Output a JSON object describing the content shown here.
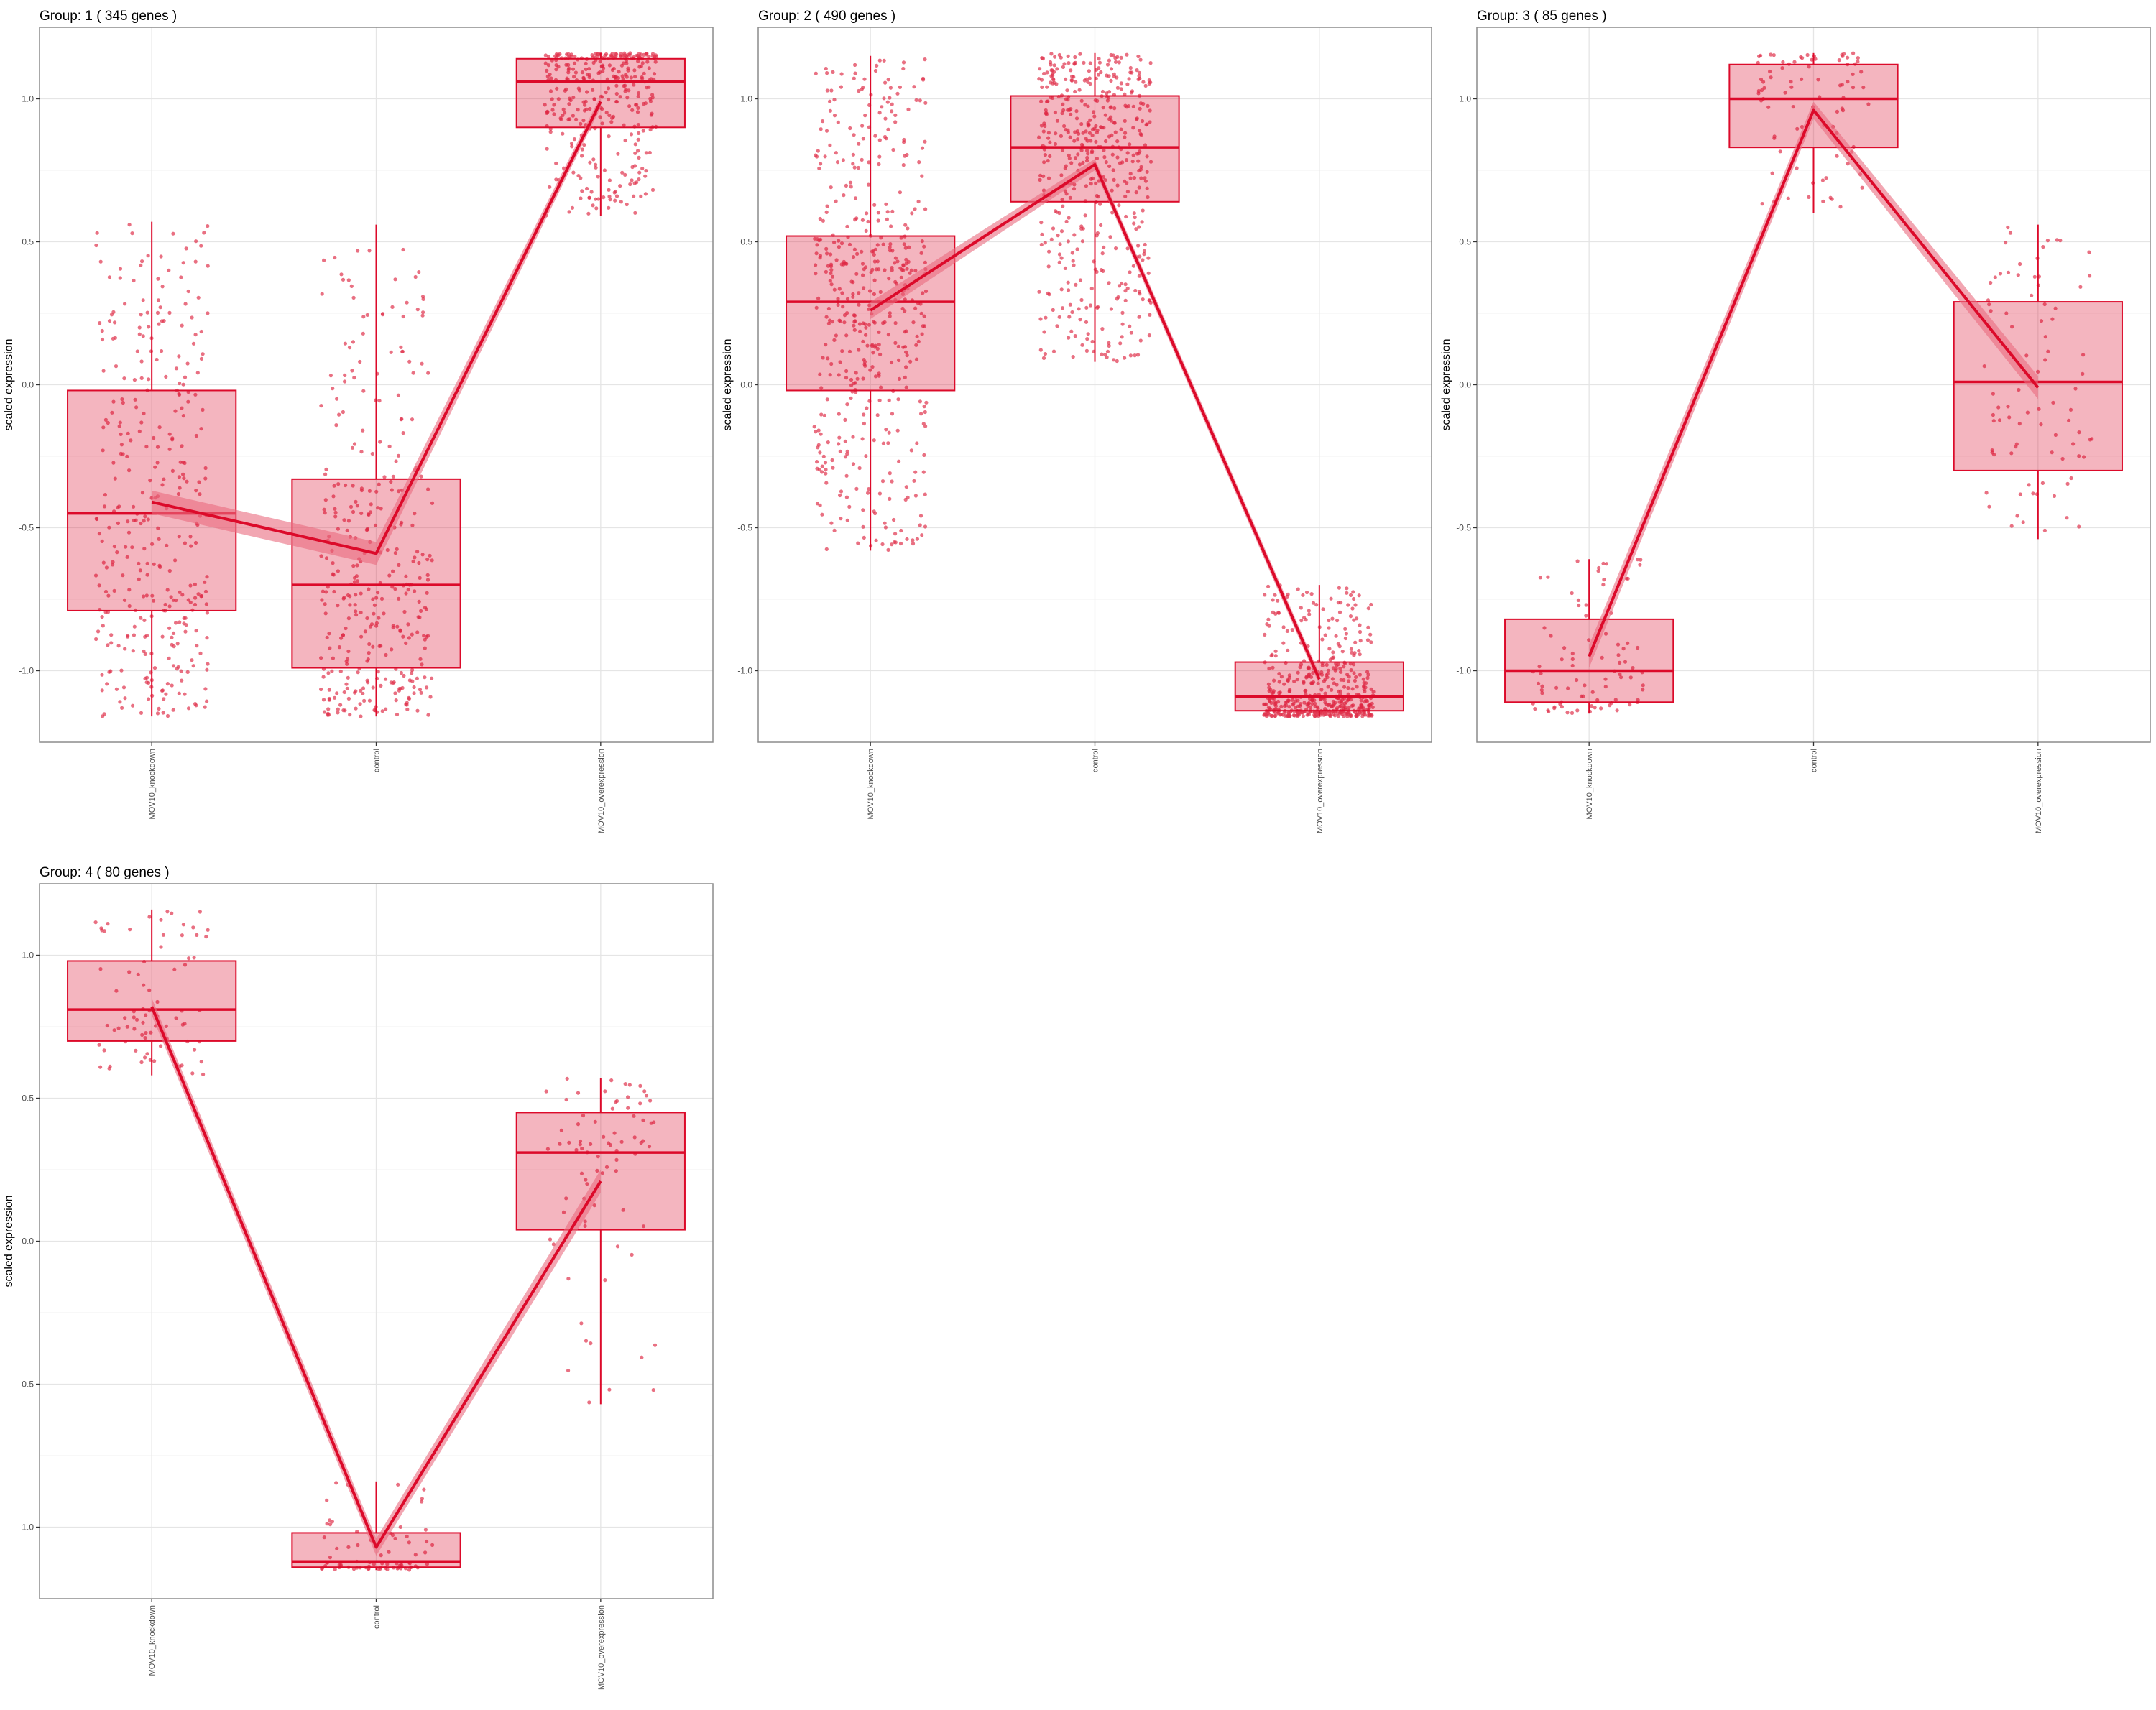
{
  "theme": {
    "accent": "#dc0a2a",
    "box_fill": "#f2b3bc",
    "point_color": "#e0334d",
    "band_color": "#ea6b7e",
    "grid_major": "#e5e5e5",
    "grid_minor": "#f2f2f2",
    "panel_border": "#8c8c8c"
  },
  "chart_data": [
    {
      "type": "box",
      "title": "Group: 1 ( 345  genes )",
      "ylabel": "scaled expression",
      "xlabel": "",
      "n_genes": 345,
      "categories": [
        "MOV10_knockdown",
        "control",
        "MOV10_overexpression"
      ],
      "ylim": [
        -1.25,
        1.25
      ],
      "yticks": [
        -1.0,
        -0.5,
        0.0,
        0.5,
        1.0
      ],
      "ytick_labels": [
        "-1.0",
        "-0.5",
        "0.0",
        "0.5",
        "1.0"
      ],
      "grid": true,
      "boxes": [
        {
          "category": "MOV10_knockdown",
          "whisker_low": -1.16,
          "q1": -0.79,
          "median": -0.45,
          "q3": -0.02,
          "whisker_high": 0.57
        },
        {
          "category": "control",
          "whisker_low": -1.16,
          "q1": -0.99,
          "median": -0.7,
          "q3": -0.33,
          "whisker_high": 0.56
        },
        {
          "category": "MOV10_overexpression",
          "whisker_low": 0.59,
          "q1": 0.9,
          "median": 1.06,
          "q3": 1.14,
          "whisker_high": 1.16
        }
      ],
      "trend": [
        {
          "category": "MOV10_knockdown",
          "mean": -0.41,
          "lower": -0.45,
          "upper": -0.37
        },
        {
          "category": "control",
          "mean": -0.59,
          "lower": -0.63,
          "upper": -0.55
        },
        {
          "category": "MOV10_overexpression",
          "mean": 0.99,
          "lower": 0.97,
          "upper": 1.01
        }
      ]
    },
    {
      "type": "box",
      "title": "Group: 2 ( 490  genes )",
      "ylabel": "scaled expression",
      "xlabel": "",
      "n_genes": 490,
      "categories": [
        "MOV10_knockdown",
        "control",
        "MOV10_overexpression"
      ],
      "ylim": [
        -1.25,
        1.25
      ],
      "yticks": [
        -1.0,
        -0.5,
        0.0,
        0.5,
        1.0
      ],
      "ytick_labels": [
        "-1.0",
        "-0.5",
        "0.0",
        "0.5",
        "1.0"
      ],
      "grid": true,
      "boxes": [
        {
          "category": "MOV10_knockdown",
          "whisker_low": -0.58,
          "q1": -0.02,
          "median": 0.29,
          "q3": 0.52,
          "whisker_high": 1.15
        },
        {
          "category": "control",
          "whisker_low": 0.08,
          "q1": 0.64,
          "median": 0.83,
          "q3": 1.01,
          "whisker_high": 1.16
        },
        {
          "category": "MOV10_overexpression",
          "whisker_low": -1.16,
          "q1": -1.14,
          "median": -1.09,
          "q3": -0.97,
          "whisker_high": -0.7
        }
      ],
      "trend": [
        {
          "category": "MOV10_knockdown",
          "mean": 0.26,
          "lower": 0.23,
          "upper": 0.29
        },
        {
          "category": "control",
          "mean": 0.77,
          "lower": 0.75,
          "upper": 0.79
        },
        {
          "category": "MOV10_overexpression",
          "mean": -1.03,
          "lower": -1.05,
          "upper": -1.01
        }
      ]
    },
    {
      "type": "box",
      "title": "Group: 3 ( 85  genes )",
      "ylabel": "scaled expression",
      "xlabel": "",
      "n_genes": 85,
      "categories": [
        "MOV10_knockdown",
        "control",
        "MOV10_overexpression"
      ],
      "ylim": [
        -1.25,
        1.25
      ],
      "yticks": [
        -1.0,
        -0.5,
        0.0,
        0.5,
        1.0
      ],
      "ytick_labels": [
        "-1.0",
        "-0.5",
        "0.0",
        "0.5",
        "1.0"
      ],
      "grid": true,
      "boxes": [
        {
          "category": "MOV10_knockdown",
          "whisker_low": -1.15,
          "q1": -1.11,
          "median": -1.0,
          "q3": -0.82,
          "whisker_high": -0.61
        },
        {
          "category": "control",
          "whisker_low": 0.6,
          "q1": 0.83,
          "median": 1.0,
          "q3": 1.12,
          "whisker_high": 1.16
        },
        {
          "category": "MOV10_overexpression",
          "whisker_low": -0.54,
          "q1": -0.3,
          "median": 0.01,
          "q3": 0.29,
          "whisker_high": 0.56
        }
      ],
      "trend": [
        {
          "category": "MOV10_knockdown",
          "mean": -0.95,
          "lower": -0.99,
          "upper": -0.91
        },
        {
          "category": "control",
          "mean": 0.96,
          "lower": 0.93,
          "upper": 0.99
        },
        {
          "category": "MOV10_overexpression",
          "mean": -0.01,
          "lower": -0.05,
          "upper": 0.03
        }
      ]
    },
    {
      "type": "box",
      "title": "Group: 4 ( 80  genes )",
      "ylabel": "scaled expression",
      "xlabel": "",
      "n_genes": 80,
      "categories": [
        "MOV10_knockdown",
        "control",
        "MOV10_overexpression"
      ],
      "ylim": [
        -1.25,
        1.25
      ],
      "yticks": [
        -1.0,
        -0.5,
        0.0,
        0.5,
        1.0
      ],
      "ytick_labels": [
        "-1.0",
        "-0.5",
        "0.0",
        "0.5",
        "1.0"
      ],
      "grid": true,
      "boxes": [
        {
          "category": "MOV10_knockdown",
          "whisker_low": 0.58,
          "q1": 0.7,
          "median": 0.81,
          "q3": 0.98,
          "whisker_high": 1.16
        },
        {
          "category": "control",
          "whisker_low": -1.15,
          "q1": -1.14,
          "median": -1.12,
          "q3": -1.02,
          "whisker_high": -0.84
        },
        {
          "category": "MOV10_overexpression",
          "whisker_low": -0.57,
          "q1": 0.04,
          "median": 0.31,
          "q3": 0.45,
          "whisker_high": 0.57
        }
      ],
      "trend": [
        {
          "category": "MOV10_knockdown",
          "mean": 0.82,
          "lower": 0.79,
          "upper": 0.85
        },
        {
          "category": "control",
          "mean": -1.07,
          "lower": -1.1,
          "upper": -1.04
        },
        {
          "category": "MOV10_overexpression",
          "mean": 0.21,
          "lower": 0.17,
          "upper": 0.25
        }
      ]
    }
  ]
}
